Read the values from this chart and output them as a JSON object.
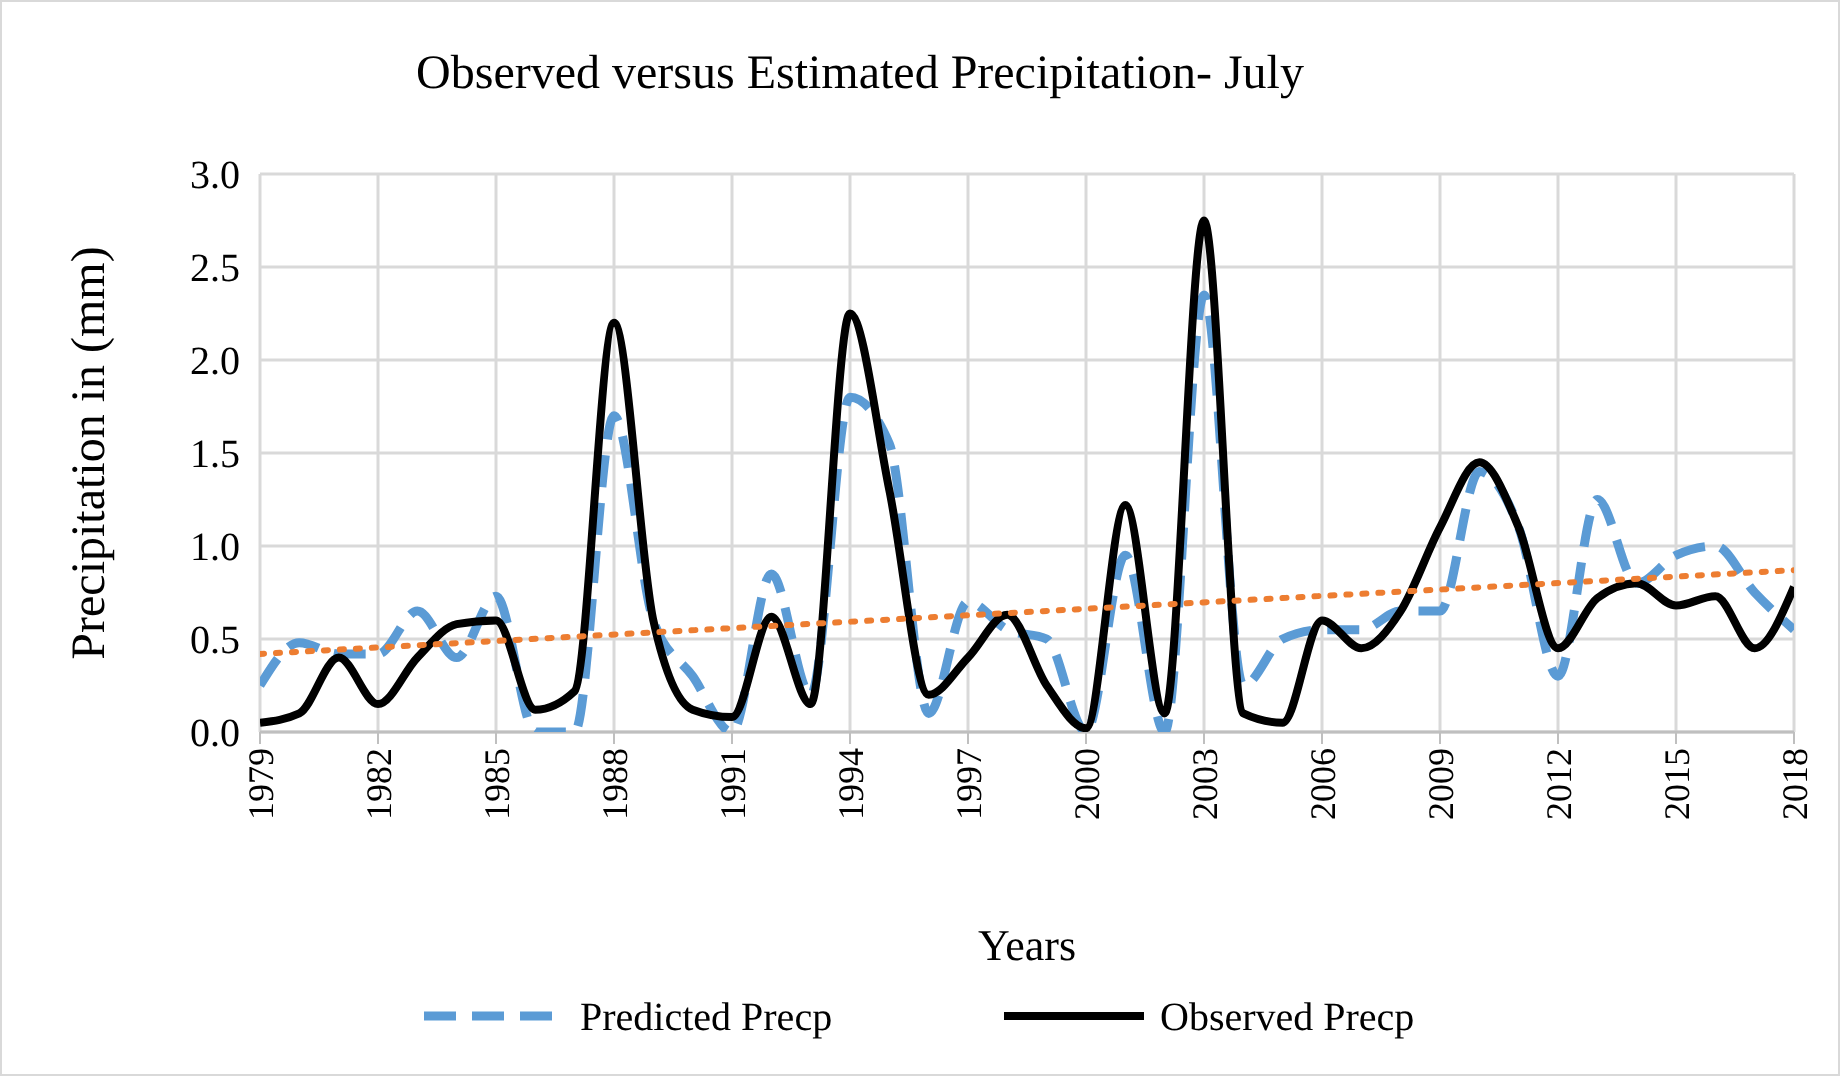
{
  "chart_data": {
    "type": "line",
    "title": "Observed versus Estimated Precipitation- July",
    "xlabel": "Years",
    "ylabel": "Precipitation in (mm)",
    "x": [
      1979,
      1980,
      1981,
      1982,
      1983,
      1984,
      1985,
      1986,
      1987,
      1988,
      1989,
      1990,
      1991,
      1992,
      1993,
      1994,
      1995,
      1996,
      1997,
      1998,
      1999,
      2000,
      2001,
      2002,
      2003,
      2004,
      2005,
      2006,
      2007,
      2008,
      2009,
      2010,
      2011,
      2012,
      2013,
      2014,
      2015,
      2016,
      2017,
      2018
    ],
    "series": [
      {
        "name": "Predicted Precp",
        "color": "#5b9bd5",
        "line_style": "dashed",
        "values": [
          0.25,
          0.48,
          0.42,
          0.42,
          0.65,
          0.4,
          0.73,
          0,
          0,
          1.7,
          0.6,
          0.3,
          0,
          0.85,
          0.2,
          1.8,
          1.55,
          0.1,
          0.7,
          0.55,
          0.5,
          0,
          0.95,
          0,
          2.35,
          0.25,
          0.5,
          0.55,
          0.55,
          0.65,
          0.65,
          1.4,
          1.1,
          0.3,
          1.25,
          0.8,
          0.95,
          1.0,
          0.75,
          0.55
        ]
      },
      {
        "name": "Observed Precp",
        "color": "#000000",
        "line_style": "solid",
        "values": [
          0.05,
          0.1,
          0.4,
          0.15,
          0.4,
          0.58,
          0.6,
          0.12,
          0.22,
          2.2,
          0.6,
          0.12,
          0.08,
          0.62,
          0.15,
          2.25,
          1.3,
          0.2,
          0.4,
          0.63,
          0.25,
          0.02,
          1.22,
          0.1,
          2.75,
          0.1,
          0.05,
          0.6,
          0.45,
          0.65,
          1.1,
          1.45,
          1.1,
          0.45,
          0.72,
          0.8,
          0.68,
          0.73,
          0.45,
          0.78
        ]
      },
      {
        "type": "line",
        "color": "#ed7d31",
        "line_style": "dotted",
        "x": [
          1979,
          2018
        ],
        "values": [
          0.42,
          0.87
        ]
      }
    ],
    "xlim": [
      1979,
      2018
    ],
    "xticks": [
      1979,
      1982,
      1985,
      1988,
      1991,
      1994,
      1997,
      2000,
      2003,
      2006,
      2009,
      2012,
      2015,
      2018
    ],
    "ylim": [
      0,
      3
    ],
    "yticks": [
      {
        "value": 0,
        "label": "0.0"
      },
      {
        "value": 0.5,
        "label": "0.5"
      },
      {
        "value": 1,
        "label": "1.0"
      },
      {
        "value": 1.5,
        "label": "1.5"
      },
      {
        "value": 2,
        "label": "2.0"
      },
      {
        "value": 2.5,
        "label": "2.5"
      },
      {
        "value": 3,
        "label": "3.0"
      }
    ],
    "grid": true,
    "legend": "bottom"
  }
}
